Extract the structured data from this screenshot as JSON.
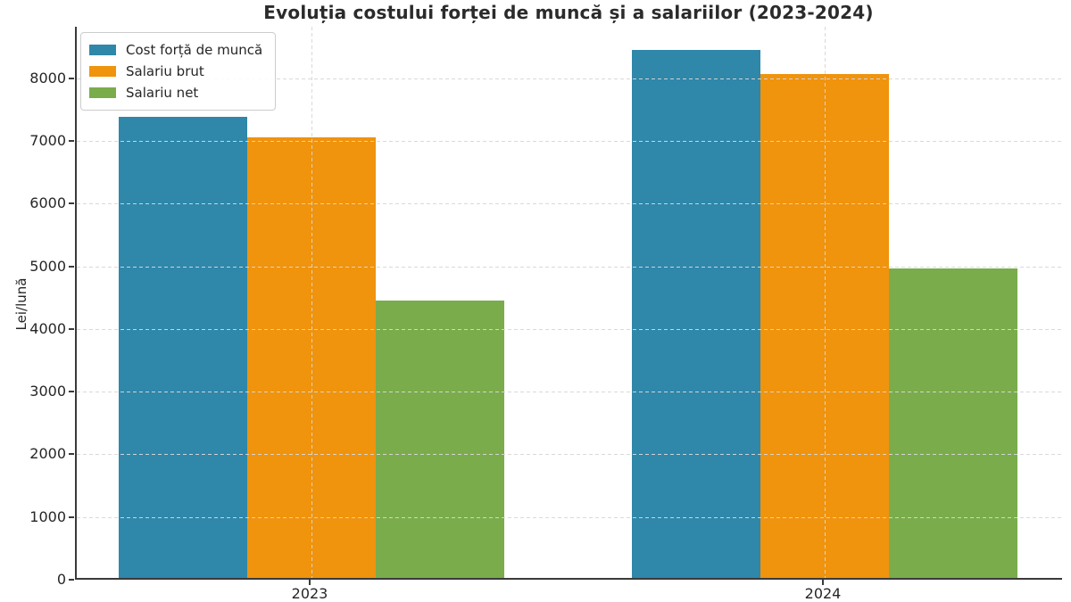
{
  "title": "Evoluția costului forței de muncă și a salariilor (2023-2024)",
  "chart_data": {
    "type": "bar",
    "title": "Evoluția costului forței de muncă și a salariilor (2023-2024)",
    "categories": [
      "2023",
      "2024"
    ],
    "series": [
      {
        "name": "Cost forță de muncă",
        "color": "#2f87aa",
        "values": [
          7360,
          8420
        ]
      },
      {
        "name": "Salariu brut",
        "color": "#f0930d",
        "values": [
          7030,
          8040
        ]
      },
      {
        "name": "Salariu net",
        "color": "#7aac4b",
        "values": [
          4420,
          4930
        ]
      }
    ],
    "xlabel": "",
    "ylabel": "Lei/lună",
    "ylim": [
      0,
      8820
    ],
    "yticks": [
      0,
      1000,
      2000,
      3000,
      4000,
      5000,
      6000,
      7000,
      8000
    ],
    "grid": true,
    "grid_style": "dashed",
    "legend_position": "upper left",
    "bar_colors": {
      "blue": "#2f87aa",
      "orange": "#f0930d",
      "green": "#7aac4b"
    },
    "axis_color": "#3a3a3a"
  }
}
